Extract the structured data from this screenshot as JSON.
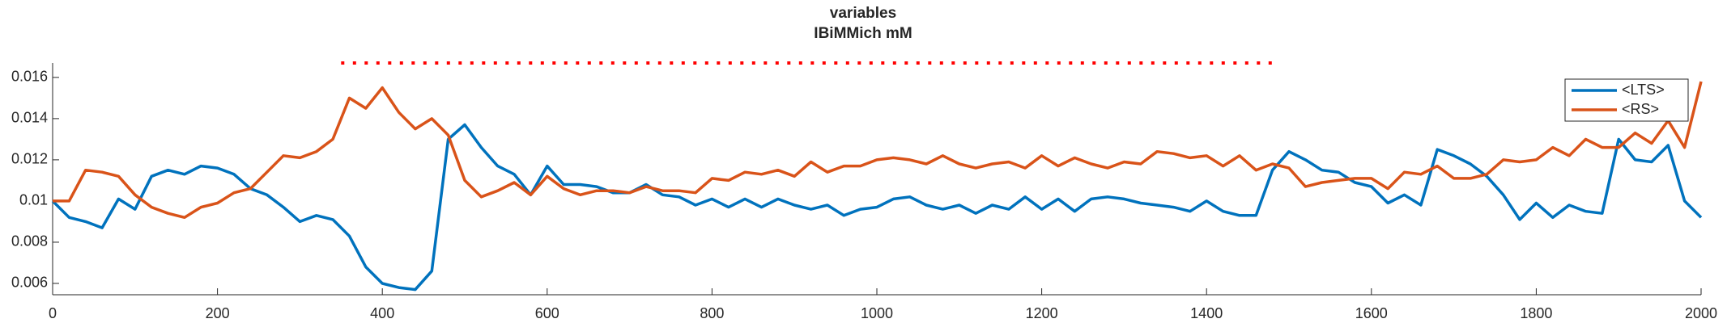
{
  "chart_data": {
    "type": "line",
    "title": "variables",
    "subtitle": "IBiMMich mM",
    "x": [
      0,
      20,
      40,
      60,
      80,
      100,
      120,
      140,
      160,
      180,
      200,
      220,
      240,
      260,
      280,
      300,
      320,
      340,
      360,
      380,
      400,
      420,
      440,
      460,
      480,
      500,
      520,
      540,
      560,
      580,
      600,
      620,
      640,
      660,
      680,
      700,
      720,
      740,
      760,
      780,
      800,
      820,
      840,
      860,
      880,
      900,
      920,
      940,
      960,
      980,
      1000,
      1020,
      1040,
      1060,
      1080,
      1100,
      1120,
      1140,
      1160,
      1180,
      1200,
      1220,
      1240,
      1260,
      1280,
      1300,
      1320,
      1340,
      1360,
      1380,
      1400,
      1420,
      1440,
      1460,
      1480,
      1500,
      1520,
      1540,
      1560,
      1580,
      1600,
      1620,
      1640,
      1660,
      1680,
      1700,
      1720,
      1740,
      1760,
      1780,
      1800,
      1820,
      1840,
      1860,
      1880,
      1900,
      1920,
      1940,
      1960,
      1980,
      2000
    ],
    "series": [
      {
        "name": "<LTS>",
        "color": "#0072bd",
        "values": [
          0.01,
          0.0092,
          0.009,
          0.0087,
          0.0101,
          0.0096,
          0.0112,
          0.0115,
          0.0113,
          0.0117,
          0.0116,
          0.0113,
          0.0106,
          0.0103,
          0.0097,
          0.009,
          0.0093,
          0.0091,
          0.0083,
          0.0068,
          0.006,
          0.0058,
          0.0057,
          0.0066,
          0.013,
          0.0137,
          0.0126,
          0.0117,
          0.0113,
          0.0103,
          0.0117,
          0.0108,
          0.0108,
          0.0107,
          0.0104,
          0.0104,
          0.0108,
          0.0103,
          0.0102,
          0.0098,
          0.0101,
          0.0097,
          0.0101,
          0.0097,
          0.0101,
          0.0098,
          0.0096,
          0.0098,
          0.0093,
          0.0096,
          0.0097,
          0.0101,
          0.0102,
          0.0098,
          0.0096,
          0.0098,
          0.0094,
          0.0098,
          0.0096,
          0.0102,
          0.0096,
          0.0101,
          0.0095,
          0.0101,
          0.0102,
          0.0101,
          0.0099,
          0.0098,
          0.0097,
          0.0095,
          0.01,
          0.0095,
          0.0093,
          0.0093,
          0.0115,
          0.0124,
          0.012,
          0.0115,
          0.0114,
          0.0109,
          0.0107,
          0.0099,
          0.0103,
          0.0098,
          0.0125,
          0.0122,
          0.0118,
          0.0112,
          0.0103,
          0.0091,
          0.0099,
          0.0092,
          0.0098,
          0.0095,
          0.0094,
          0.013,
          0.012,
          0.0119,
          0.0127,
          0.01,
          0.0092
        ]
      },
      {
        "name": "<RS>",
        "color": "#d95319",
        "values": [
          0.01,
          0.01,
          0.0115,
          0.0114,
          0.0112,
          0.0103,
          0.0097,
          0.0094,
          0.0092,
          0.0097,
          0.0099,
          0.0104,
          0.0106,
          0.0114,
          0.0122,
          0.0121,
          0.0124,
          0.013,
          0.015,
          0.0145,
          0.0155,
          0.0143,
          0.0135,
          0.014,
          0.0132,
          0.011,
          0.0102,
          0.0105,
          0.0109,
          0.0103,
          0.0112,
          0.0106,
          0.0103,
          0.0105,
          0.0105,
          0.0104,
          0.0107,
          0.0105,
          0.0105,
          0.0104,
          0.0111,
          0.011,
          0.0114,
          0.0113,
          0.0115,
          0.0112,
          0.0119,
          0.0114,
          0.0117,
          0.0117,
          0.012,
          0.0121,
          0.012,
          0.0118,
          0.0122,
          0.0118,
          0.0116,
          0.0118,
          0.0119,
          0.0116,
          0.0122,
          0.0117,
          0.0121,
          0.0118,
          0.0116,
          0.0119,
          0.0118,
          0.0124,
          0.0123,
          0.0121,
          0.0122,
          0.0117,
          0.0122,
          0.0115,
          0.0118,
          0.0116,
          0.0107,
          0.0109,
          0.011,
          0.0111,
          0.0111,
          0.0106,
          0.0114,
          0.0113,
          0.0117,
          0.0111,
          0.0111,
          0.0113,
          0.012,
          0.0119,
          0.012,
          0.0126,
          0.0122,
          0.013,
          0.0126,
          0.0126,
          0.0133,
          0.0128,
          0.0139,
          0.0126,
          0.0158
        ]
      }
    ],
    "significance": {
      "x": [
        350,
        1480
      ],
      "y": 0.0167,
      "color": "#ff0000"
    },
    "xlim": [
      0,
      2000
    ],
    "xticks": [
      0,
      200,
      400,
      600,
      800,
      1000,
      1200,
      1400,
      1600,
      1800,
      2000
    ],
    "ylim": [
      0.00545,
      0.0167
    ],
    "yticks": [
      0.006,
      0.008,
      0.01,
      0.012,
      0.014,
      0.016
    ],
    "grid": false,
    "legend": "northeast"
  }
}
